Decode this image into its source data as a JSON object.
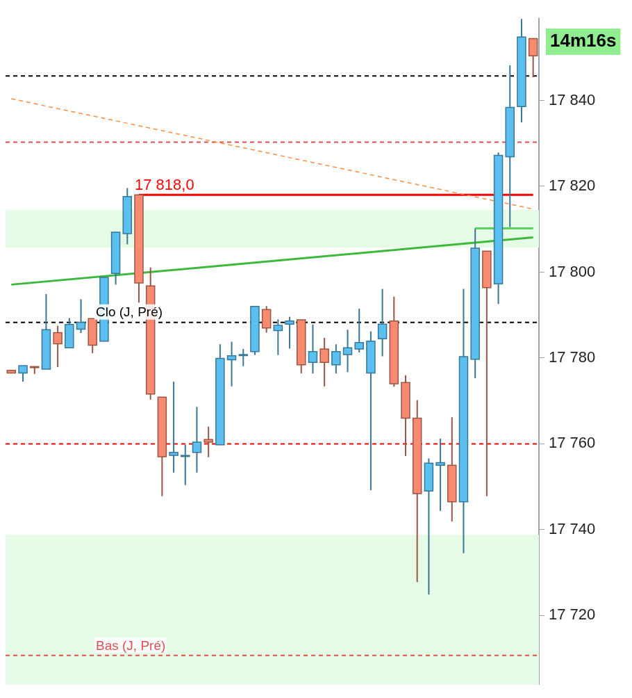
{
  "chart_data": {
    "type": "candlestick",
    "tick_labels": "y",
    "grid": false,
    "legend": false,
    "categories": [
      null,
      null,
      null,
      null,
      null,
      null,
      null,
      null,
      null,
      null,
      null,
      null,
      null,
      null,
      null,
      null,
      null,
      null,
      null,
      null,
      null,
      null,
      null,
      null,
      null,
      null,
      null,
      null,
      null,
      null,
      null,
      null,
      null,
      null,
      null,
      null,
      null,
      null,
      null,
      null,
      null,
      null,
      null,
      null,
      null,
      null
    ],
    "ohlc": [
      [
        17777.1,
        17777.1,
        17776.5,
        17776.5
      ],
      [
        17776.5,
        17778.2,
        17774.5,
        17778.2
      ],
      [
        17778,
        17778,
        17776.3,
        17777.9
      ],
      [
        17777.4,
        17794.9,
        17777.4,
        17786.6
      ],
      [
        17785.9,
        17787.5,
        17777.9,
        17783.3
      ],
      [
        17782.4,
        17789.3,
        17782.4,
        17787.8
      ],
      [
        17786.7,
        17793.7,
        17785.8,
        17788.3
      ],
      [
        17789.2,
        17789.2,
        17781.1,
        17783
      ],
      [
        17783.9,
        17798.8,
        17783.9,
        17798.8
      ],
      [
        17799.7,
        17809.3,
        17797.1,
        17809.3
      ],
      [
        17809,
        17819.6,
        17806.5,
        17817.6
      ],
      [
        17818,
        17818,
        17792.9,
        17797.5
      ],
      [
        17796.8,
        17801.1,
        17770.3,
        17771.6
      ],
      [
        17770.9,
        17770.9,
        17747.8,
        17757
      ],
      [
        17757.3,
        17774.5,
        17753.3,
        17758
      ],
      [
        17757.2,
        17759.8,
        17750.4,
        17757.3
      ],
      [
        17758,
        17768.6,
        17753.3,
        17760.4
      ],
      [
        17761,
        17764,
        17756.9,
        17760.4
      ],
      [
        17759.8,
        17783.2,
        17759.7,
        17779.9
      ],
      [
        17779.6,
        17783.8,
        17773.4,
        17780.5
      ],
      [
        17780.7,
        17782.1,
        17778.1,
        17780.8
      ],
      [
        17781.5,
        17792,
        17780.7,
        17792
      ],
      [
        17791.3,
        17792.1,
        17785.9,
        17787
      ],
      [
        17786.4,
        17789,
        17780.7,
        17787.6
      ],
      [
        17787.9,
        17789.6,
        17782.2,
        17788.6
      ],
      [
        17788.9,
        17788.9,
        17776.4,
        17778.4
      ],
      [
        17779,
        17787.8,
        17776.4,
        17781.5
      ],
      [
        17782.1,
        17784.7,
        17773.4,
        17779
      ],
      [
        17778.4,
        17783.2,
        17776.4,
        17781.5
      ],
      [
        17780.8,
        17786.6,
        17776.7,
        17782.4
      ],
      [
        17782.1,
        17791.5,
        17781.3,
        17783.6
      ],
      [
        17776.5,
        17786.2,
        17749.2,
        17783.9
      ],
      [
        17784.5,
        17796.1,
        17780.4,
        17787.9
      ],
      [
        17788.6,
        17794.3,
        17773.3,
        17774
      ],
      [
        17774.3,
        17776,
        17757.2,
        17766
      ],
      [
        17766,
        17770.2,
        17727.8,
        17748.4
      ],
      [
        17749,
        17756.6,
        17724.9,
        17755.5
      ],
      [
        17755,
        17761.2,
        17744.4,
        17755.6
      ],
      [
        17755,
        17766.2,
        17741.9,
        17746.5
      ],
      [
        17746.5,
        17796.1,
        17734.5,
        17780.3
      ],
      [
        17779.7,
        17810.2,
        17775.3,
        17805.6
      ],
      [
        17804.9,
        17804.9,
        17747.8,
        17796.4
      ],
      [
        17797.3,
        17827.9,
        17792.6,
        17827.2
      ],
      [
        17826.9,
        17848.2,
        17810.5,
        17838.4
      ],
      [
        17838.6,
        17859,
        17834.9,
        17854.8
      ],
      [
        17854.4,
        17854.4,
        17845.4,
        17850.4
      ]
    ],
    "colors": [
      "#f88a70",
      "#5bc0f0",
      "#f88a70",
      "#5bc0f0",
      "#f88a70",
      "#5bc0f0",
      "#5bc0f0",
      "#f88a70",
      "#5bc0f0",
      "#5bc0f0",
      "#5bc0f0",
      "#f88a70",
      "#f88a70",
      "#f88a70",
      "#5bc0f0",
      "#5bc0f0",
      "#5bc0f0",
      "#f88a70",
      "#5bc0f0",
      "#5bc0f0",
      "#5bc0f0",
      "#5bc0f0",
      "#f88a70",
      "#5bc0f0",
      "#5bc0f0",
      "#f88a70",
      "#5bc0f0",
      "#f88a70",
      "#5bc0f0",
      "#5bc0f0",
      "#5bc0f0",
      "#5bc0f0",
      "#5bc0f0",
      "#f88a70",
      "#f88a70",
      "#f88a70",
      "#5bc0f0",
      "#5bc0f0",
      "#f88a70",
      "#5bc0f0",
      "#5bc0f0",
      "#f88a70",
      "#5bc0f0",
      "#5bc0f0",
      "#5bc0f0",
      "#f88a70"
    ],
    "series": [
      {
        "type": "line",
        "color": "#3cb83c",
        "values": [
          17797.1,
          null,
          null,
          null,
          null,
          null,
          null,
          null,
          null,
          null,
          null,
          null,
          null,
          null,
          null,
          null,
          null,
          null,
          null,
          null,
          null,
          null,
          null,
          null,
          null,
          null,
          null,
          null,
          null,
          null,
          null,
          null,
          null,
          null,
          null,
          null,
          null,
          null,
          null,
          null,
          null,
          null,
          null,
          null,
          null,
          17808.1
        ]
      },
      {
        "type": "line",
        "color": "#ff8c40",
        "line_style": "dashed",
        "values": [
          17840.4,
          null,
          null,
          null,
          null,
          null,
          null,
          null,
          null,
          null,
          null,
          null,
          null,
          null,
          null,
          null,
          null,
          null,
          null,
          null,
          null,
          null,
          null,
          null,
          null,
          null,
          null,
          null,
          null,
          null,
          null,
          null,
          null,
          null,
          null,
          null,
          null,
          null,
          null,
          null,
          null,
          null,
          null,
          null,
          null,
          17814.7
        ]
      },
      {
        "type": "line",
        "color": "#5cd05c",
        "values": [
          null,
          null,
          null,
          null,
          null,
          null,
          null,
          null,
          null,
          null,
          null,
          null,
          null,
          null,
          null,
          null,
          null,
          null,
          null,
          null,
          null,
          null,
          null,
          null,
          null,
          null,
          null,
          null,
          null,
          null,
          null,
          null,
          null,
          null,
          null,
          null,
          null,
          null,
          null,
          null,
          17810.2,
          null,
          null,
          null,
          null,
          17810.2
        ]
      },
      {
        "type": "line",
        "color": "#ff0000",
        "values": [
          null,
          null,
          null,
          null,
          null,
          null,
          null,
          null,
          null,
          null,
          null,
          17818,
          null,
          null,
          null,
          null,
          null,
          null,
          null,
          null,
          null,
          null,
          null,
          null,
          null,
          null,
          null,
          null,
          null,
          null,
          null,
          null,
          null,
          null,
          null,
          null,
          null,
          null,
          null,
          null,
          null,
          null,
          null,
          null,
          null,
          17818
        ]
      }
    ],
    "ylim": [
      17703.9,
      17859
    ],
    "yticks": [
      {
        "value": 17720,
        "label": "17 720"
      },
      {
        "value": 17740,
        "label": "17 740"
      },
      {
        "value": 17760,
        "label": "17 760"
      },
      {
        "value": 17780,
        "label": "17 780"
      },
      {
        "value": 17800,
        "label": "17 800"
      },
      {
        "value": 17820,
        "label": "17 820"
      },
      {
        "value": 17840,
        "label": "17 840"
      }
    ],
    "bands": [
      {
        "axis": "y",
        "from": 17703.9,
        "to": 17738.8,
        "color": "#e6fbe6"
      },
      {
        "axis": "y",
        "from": 17805.7,
        "to": 17814.5,
        "color": "#e6fbe6"
      }
    ],
    "ref_lines": [
      {
        "axis": "y",
        "value": 17845.7,
        "color": "#000000",
        "line_style": "dashed"
      },
      {
        "axis": "y",
        "value": 17830.3,
        "color": "#e05050",
        "line_style": "dashed"
      },
      {
        "axis": "y",
        "value": 17788.3,
        "label": "Clo (J, Pré)",
        "color": "#000000",
        "line_style": "dashed"
      },
      {
        "axis": "y",
        "value": 17760,
        "color": "#ff0000",
        "line_style": "dashed"
      },
      {
        "axis": "y",
        "value": 17710.7,
        "label": "Bas (J, Pré)",
        "color": "#e05050",
        "line_style": "dashed"
      }
    ],
    "annotations": [
      {
        "text": "17 818,0",
        "y": 17818
      },
      "14m16s"
    ]
  }
}
